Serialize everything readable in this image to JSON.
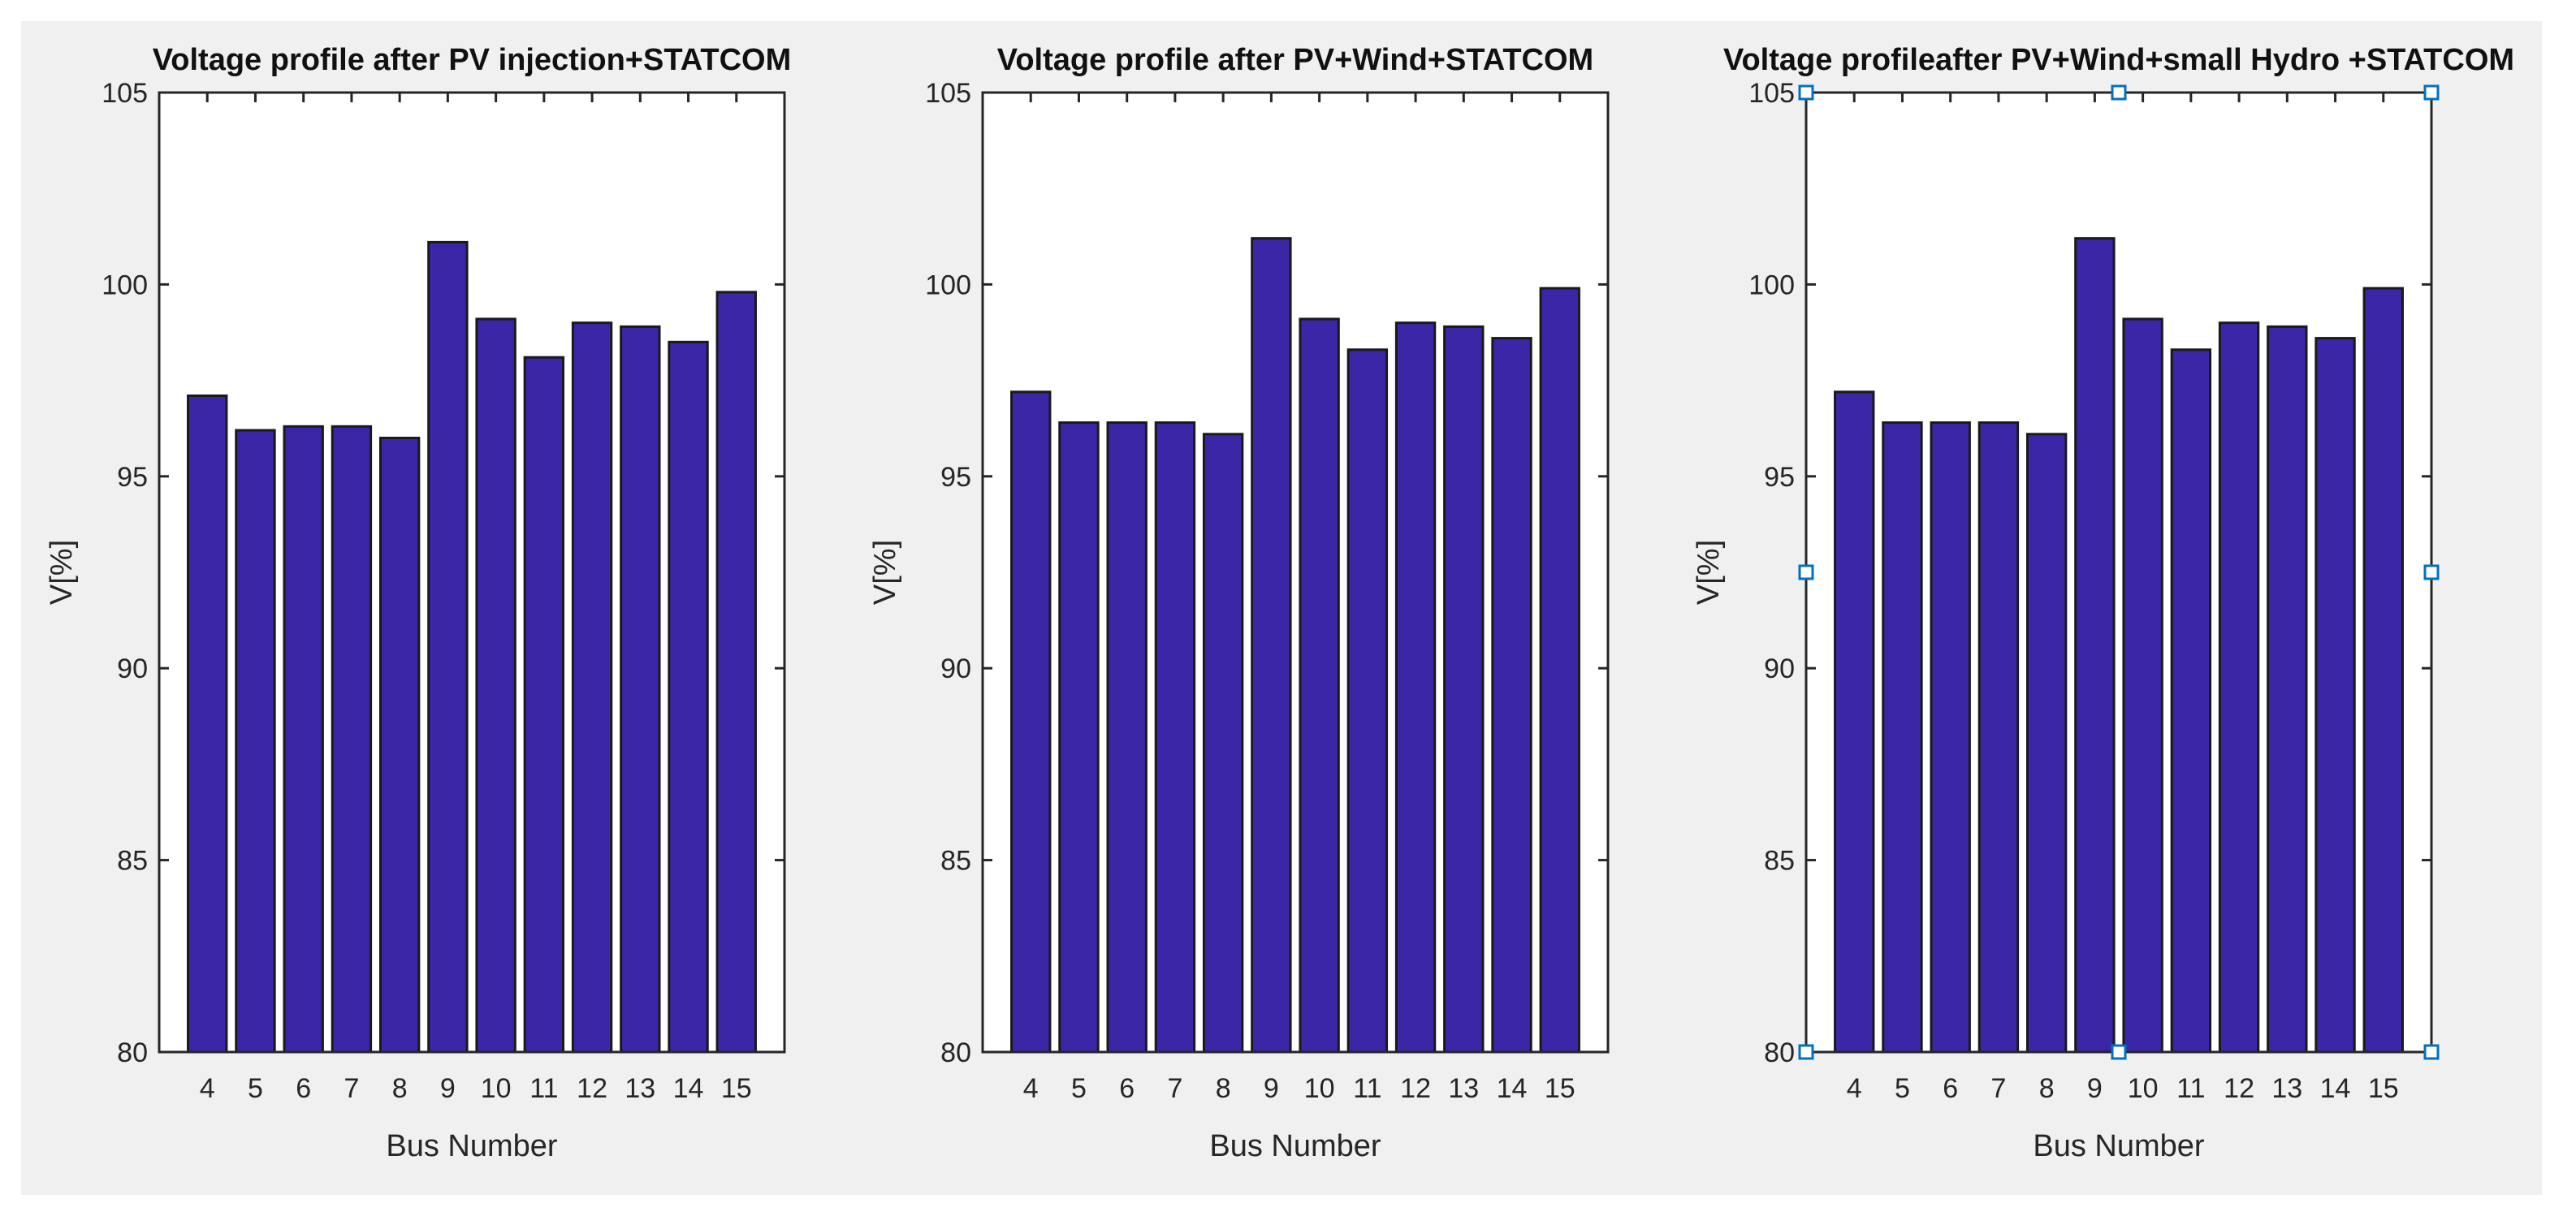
{
  "chart_data": [
    {
      "type": "bar",
      "title": "Voltage profile after PV injection+STATCOM",
      "xlabel": "Bus Number",
      "ylabel": "V[%]",
      "ylim": [
        80,
        105
      ],
      "yticks": [
        80,
        85,
        90,
        95,
        100,
        105
      ],
      "categories": [
        "4",
        "5",
        "6",
        "7",
        "8",
        "9",
        "10",
        "11",
        "12",
        "13",
        "14",
        "15"
      ],
      "values": [
        97.1,
        96.2,
        96.3,
        96.3,
        96.0,
        101.1,
        99.1,
        98.1,
        99.0,
        98.9,
        98.5,
        99.8
      ],
      "bar_color": "#3a26a6",
      "selected": false
    },
    {
      "type": "bar",
      "title": "Voltage profile after PV+Wind+STATCOM",
      "xlabel": "Bus Number",
      "ylabel": "V[%]",
      "ylim": [
        80,
        105
      ],
      "yticks": [
        80,
        85,
        90,
        95,
        100,
        105
      ],
      "categories": [
        "4",
        "5",
        "6",
        "7",
        "8",
        "9",
        "10",
        "11",
        "12",
        "13",
        "14",
        "15"
      ],
      "values": [
        97.2,
        96.4,
        96.4,
        96.4,
        96.1,
        101.2,
        99.1,
        98.3,
        99.0,
        98.9,
        98.6,
        99.9
      ],
      "bar_color": "#3a26a6",
      "selected": false
    },
    {
      "type": "bar",
      "title": "Voltage profileafter PV+Wind+small Hydro +STATCOM",
      "xlabel": "Bus Number",
      "ylabel": "V[%]",
      "ylim": [
        80,
        105
      ],
      "yticks": [
        80,
        85,
        90,
        95,
        100,
        105
      ],
      "categories": [
        "4",
        "5",
        "6",
        "7",
        "8",
        "9",
        "10",
        "11",
        "12",
        "13",
        "14",
        "15"
      ],
      "values": [
        97.2,
        96.4,
        96.4,
        96.4,
        96.1,
        101.2,
        99.1,
        98.3,
        99.0,
        98.9,
        98.6,
        99.9
      ],
      "bar_color": "#3a26a6",
      "selected": true
    }
  ]
}
